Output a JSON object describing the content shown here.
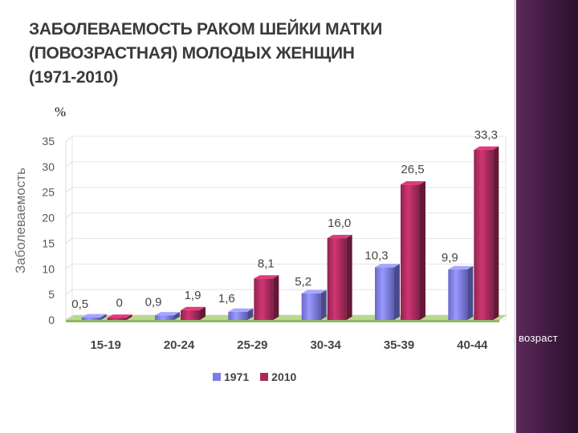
{
  "slide": {
    "title": "ЗАБОЛЕВАЕМОСТЬ РАКОМ ШЕЙКИ МАТКИ\n(ПОВОЗРАСТНАЯ) МОЛОДЫХ ЖЕНЩИН\n(1971-2010)",
    "percent_sign": "%",
    "band_color": "#4a1d4b"
  },
  "chart_data": {
    "type": "bar",
    "ylabel": "Заболеваемость",
    "xlabel": "возраст",
    "ylim": [
      0,
      35
    ],
    "yticks": [
      "0",
      "5",
      "10",
      "15",
      "20",
      "25",
      "30",
      "35"
    ],
    "grid": true,
    "legend_position": "bottom",
    "categories": [
      "15-19",
      "20-24",
      "25-29",
      "30-34",
      "35-39",
      "40-44"
    ],
    "series": [
      {
        "name": "1971",
        "color": "#7b7bea",
        "values": [
          0.5,
          0.9,
          1.6,
          5.2,
          10.3,
          9.9
        ],
        "labels": [
          "0,5",
          "0,9",
          "1,6",
          "5,2",
          "10,3",
          "9,9"
        ]
      },
      {
        "name": "2010",
        "color": "#a82a5c",
        "values": [
          0,
          1.9,
          8.1,
          16.0,
          26.5,
          33.3
        ],
        "labels": [
          "0",
          "1,9",
          "8,1",
          "16,0",
          "26,5",
          "33,3"
        ]
      }
    ]
  }
}
